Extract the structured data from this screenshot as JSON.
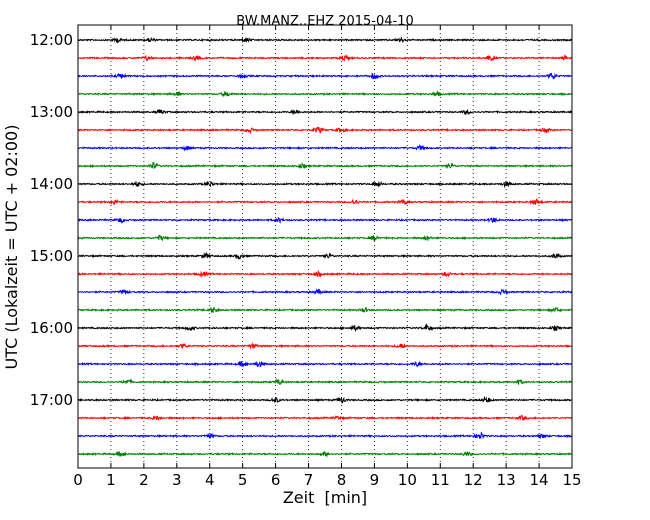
{
  "chart_data": {
    "type": "line",
    "title": "BW.MANZ..EHZ 2015-04-10",
    "xlabel": "Zeit  [min]",
    "ylabel": "UTC (Lokalzeit = UTC + 02:00)",
    "xlim": [
      0,
      15
    ],
    "x_ticks": [
      "0",
      "1",
      "2",
      "3",
      "4",
      "5",
      "6",
      "7",
      "8",
      "9",
      "10",
      "11",
      "12",
      "13",
      "14",
      "15"
    ],
    "y_ticks": [
      "12:00",
      "13:00",
      "14:00",
      "15:00",
      "16:00",
      "17:00"
    ],
    "grid": "vertical dotted",
    "colors": [
      "#000000",
      "#ff0000",
      "#0000ff",
      "#007f00"
    ],
    "series": [
      {
        "start": "12:00",
        "color": "#000000",
        "bursts": [
          {
            "x": 1.2,
            "amp": 0.22
          },
          {
            "x": 2.2,
            "amp": 0.18
          },
          {
            "x": 5.1,
            "amp": 0.2
          },
          {
            "x": 9.8,
            "amp": 0.2
          }
        ]
      },
      {
        "start": "12:15",
        "color": "#ff0000",
        "bursts": [
          {
            "x": 2.1,
            "amp": 0.22
          },
          {
            "x": 3.6,
            "amp": 0.2
          },
          {
            "x": 8.1,
            "amp": 0.28
          },
          {
            "x": 12.5,
            "amp": 0.26
          },
          {
            "x": 14.8,
            "amp": 0.22
          }
        ]
      },
      {
        "start": "12:30",
        "color": "#0000ff",
        "bursts": [
          {
            "x": 1.3,
            "amp": 0.26
          },
          {
            "x": 5.0,
            "amp": 0.2
          },
          {
            "x": 9.0,
            "amp": 0.3
          },
          {
            "x": 14.4,
            "amp": 0.3
          }
        ]
      },
      {
        "start": "12:45",
        "color": "#007f00",
        "bursts": [
          {
            "x": 3.0,
            "amp": 0.2
          },
          {
            "x": 4.5,
            "amp": 0.26
          },
          {
            "x": 10.9,
            "amp": 0.2
          }
        ]
      },
      {
        "start": "13:00",
        "color": "#000000",
        "bursts": [
          {
            "x": 2.5,
            "amp": 0.2
          },
          {
            "x": 6.6,
            "amp": 0.22
          },
          {
            "x": 11.8,
            "amp": 0.2
          }
        ]
      },
      {
        "start": "13:15",
        "color": "#ff0000",
        "bursts": [
          {
            "x": 5.2,
            "amp": 0.22
          },
          {
            "x": 7.3,
            "amp": 0.3
          },
          {
            "x": 8.0,
            "amp": 0.26
          },
          {
            "x": 14.2,
            "amp": 0.2
          }
        ]
      },
      {
        "start": "13:30",
        "color": "#0000ff",
        "bursts": [
          {
            "x": 3.3,
            "amp": 0.2
          },
          {
            "x": 10.4,
            "amp": 0.22
          }
        ]
      },
      {
        "start": "13:45",
        "color": "#007f00",
        "bursts": [
          {
            "x": 2.3,
            "amp": 0.32
          },
          {
            "x": 6.8,
            "amp": 0.2
          },
          {
            "x": 11.3,
            "amp": 0.22
          }
        ]
      },
      {
        "start": "14:00",
        "color": "#000000",
        "bursts": [
          {
            "x": 1.8,
            "amp": 0.26
          },
          {
            "x": 4.0,
            "amp": 0.24
          },
          {
            "x": 9.1,
            "amp": 0.22
          },
          {
            "x": 13.0,
            "amp": 0.26
          }
        ]
      },
      {
        "start": "14:15",
        "color": "#ff0000",
        "bursts": [
          {
            "x": 1.1,
            "amp": 0.24
          },
          {
            "x": 8.4,
            "amp": 0.24
          },
          {
            "x": 9.9,
            "amp": 0.22
          },
          {
            "x": 13.9,
            "amp": 0.3
          }
        ]
      },
      {
        "start": "14:30",
        "color": "#0000ff",
        "bursts": [
          {
            "x": 1.3,
            "amp": 0.24
          },
          {
            "x": 6.1,
            "amp": 0.2
          },
          {
            "x": 12.6,
            "amp": 0.26
          }
        ]
      },
      {
        "start": "14:45",
        "color": "#007f00",
        "bursts": [
          {
            "x": 2.5,
            "amp": 0.24
          },
          {
            "x": 9.0,
            "amp": 0.26
          },
          {
            "x": 10.6,
            "amp": 0.22
          }
        ]
      },
      {
        "start": "15:00",
        "color": "#000000",
        "bursts": [
          {
            "x": 3.9,
            "amp": 0.22
          },
          {
            "x": 4.9,
            "amp": 0.26
          },
          {
            "x": 7.6,
            "amp": 0.22
          },
          {
            "x": 14.5,
            "amp": 0.24
          }
        ]
      },
      {
        "start": "15:15",
        "color": "#ff0000",
        "bursts": [
          {
            "x": 3.8,
            "amp": 0.24
          },
          {
            "x": 7.3,
            "amp": 0.22
          },
          {
            "x": 11.2,
            "amp": 0.2
          }
        ]
      },
      {
        "start": "15:30",
        "color": "#0000ff",
        "bursts": [
          {
            "x": 1.4,
            "amp": 0.22
          },
          {
            "x": 7.3,
            "amp": 0.22
          },
          {
            "x": 12.9,
            "amp": 0.2
          }
        ]
      },
      {
        "start": "15:45",
        "color": "#007f00",
        "bursts": [
          {
            "x": 4.1,
            "amp": 0.26
          },
          {
            "x": 8.7,
            "amp": 0.22
          },
          {
            "x": 14.5,
            "amp": 0.22
          }
        ]
      },
      {
        "start": "16:00",
        "color": "#000000",
        "bursts": [
          {
            "x": 3.4,
            "amp": 0.24
          },
          {
            "x": 8.4,
            "amp": 0.26
          },
          {
            "x": 10.6,
            "amp": 0.3
          },
          {
            "x": 14.5,
            "amp": 0.2
          }
        ]
      },
      {
        "start": "16:15",
        "color": "#ff0000",
        "bursts": [
          {
            "x": 3.2,
            "amp": 0.2
          },
          {
            "x": 5.3,
            "amp": 0.2
          },
          {
            "x": 9.8,
            "amp": 0.24
          }
        ]
      },
      {
        "start": "16:30",
        "color": "#0000ff",
        "bursts": [
          {
            "x": 5.0,
            "amp": 0.28
          },
          {
            "x": 5.5,
            "amp": 0.3
          },
          {
            "x": 10.3,
            "amp": 0.22
          }
        ]
      },
      {
        "start": "16:45",
        "color": "#007f00",
        "bursts": [
          {
            "x": 1.5,
            "amp": 0.22
          },
          {
            "x": 6.1,
            "amp": 0.26
          },
          {
            "x": 13.4,
            "amp": 0.24
          }
        ]
      },
      {
        "start": "17:00",
        "color": "#000000",
        "bursts": [
          {
            "x": 6.0,
            "amp": 0.24
          },
          {
            "x": 8.0,
            "amp": 0.3
          },
          {
            "x": 12.4,
            "amp": 0.26
          }
        ]
      },
      {
        "start": "17:15",
        "color": "#ff0000",
        "bursts": [
          {
            "x": 2.4,
            "amp": 0.2
          },
          {
            "x": 7.9,
            "amp": 0.2
          },
          {
            "x": 13.5,
            "amp": 0.22
          }
        ]
      },
      {
        "start": "17:30",
        "color": "#0000ff",
        "bursts": [
          {
            "x": 4.0,
            "amp": 0.22
          },
          {
            "x": 12.2,
            "amp": 0.36
          },
          {
            "x": 14.1,
            "amp": 0.2
          }
        ]
      },
      {
        "start": "17:45",
        "color": "#007f00",
        "bursts": [
          {
            "x": 1.3,
            "amp": 0.26
          },
          {
            "x": 7.5,
            "amp": 0.22
          },
          {
            "x": 11.8,
            "amp": 0.22
          }
        ]
      }
    ]
  }
}
